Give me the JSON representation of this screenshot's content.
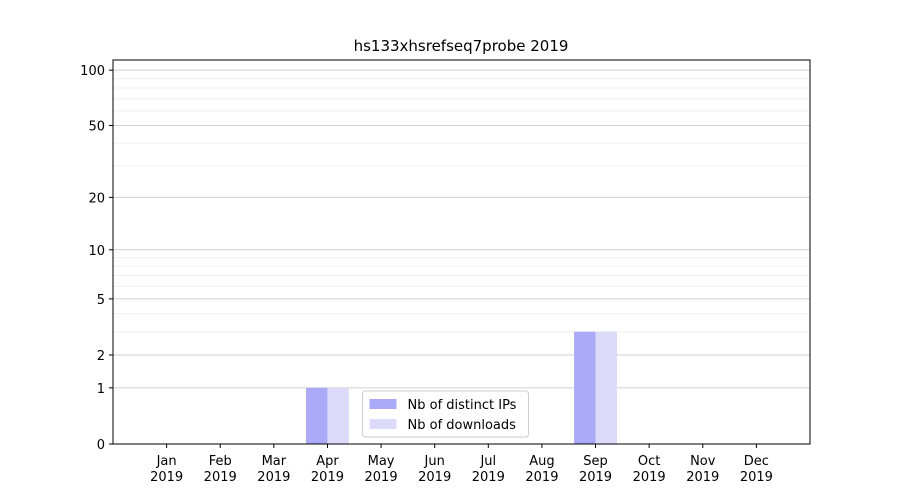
{
  "chart_data": {
    "type": "bar",
    "title": "hs133xhsrefseq7probe 2019",
    "categories": [
      "Jan\n2019",
      "Feb\n2019",
      "Mar\n2019",
      "Apr\n2019",
      "May\n2019",
      "Jun\n2019",
      "Jul\n2019",
      "Aug\n2019",
      "Sep\n2019",
      "Oct\n2019",
      "Nov\n2019",
      "Dec\n2019"
    ],
    "series": [
      {
        "name": "Nb of distinct IPs",
        "color": "#aaaaf8",
        "values": [
          0,
          0,
          0,
          1,
          0,
          0,
          0,
          0,
          3,
          0,
          0,
          0
        ]
      },
      {
        "name": "Nb of downloads",
        "color": "#dcdcfa",
        "values": [
          0,
          0,
          0,
          1,
          0,
          0,
          0,
          0,
          3,
          0,
          0,
          0
        ]
      }
    ],
    "yscale": "log1p",
    "ylim": [
      0,
      113.5
    ],
    "yticks": [
      0,
      1,
      2,
      5,
      10,
      20,
      50,
      100
    ],
    "minor_yticks": [
      3,
      4,
      6,
      7,
      8,
      9,
      30,
      40,
      60,
      70,
      80,
      90
    ],
    "grid": true,
    "legend": "bottom-center"
  }
}
